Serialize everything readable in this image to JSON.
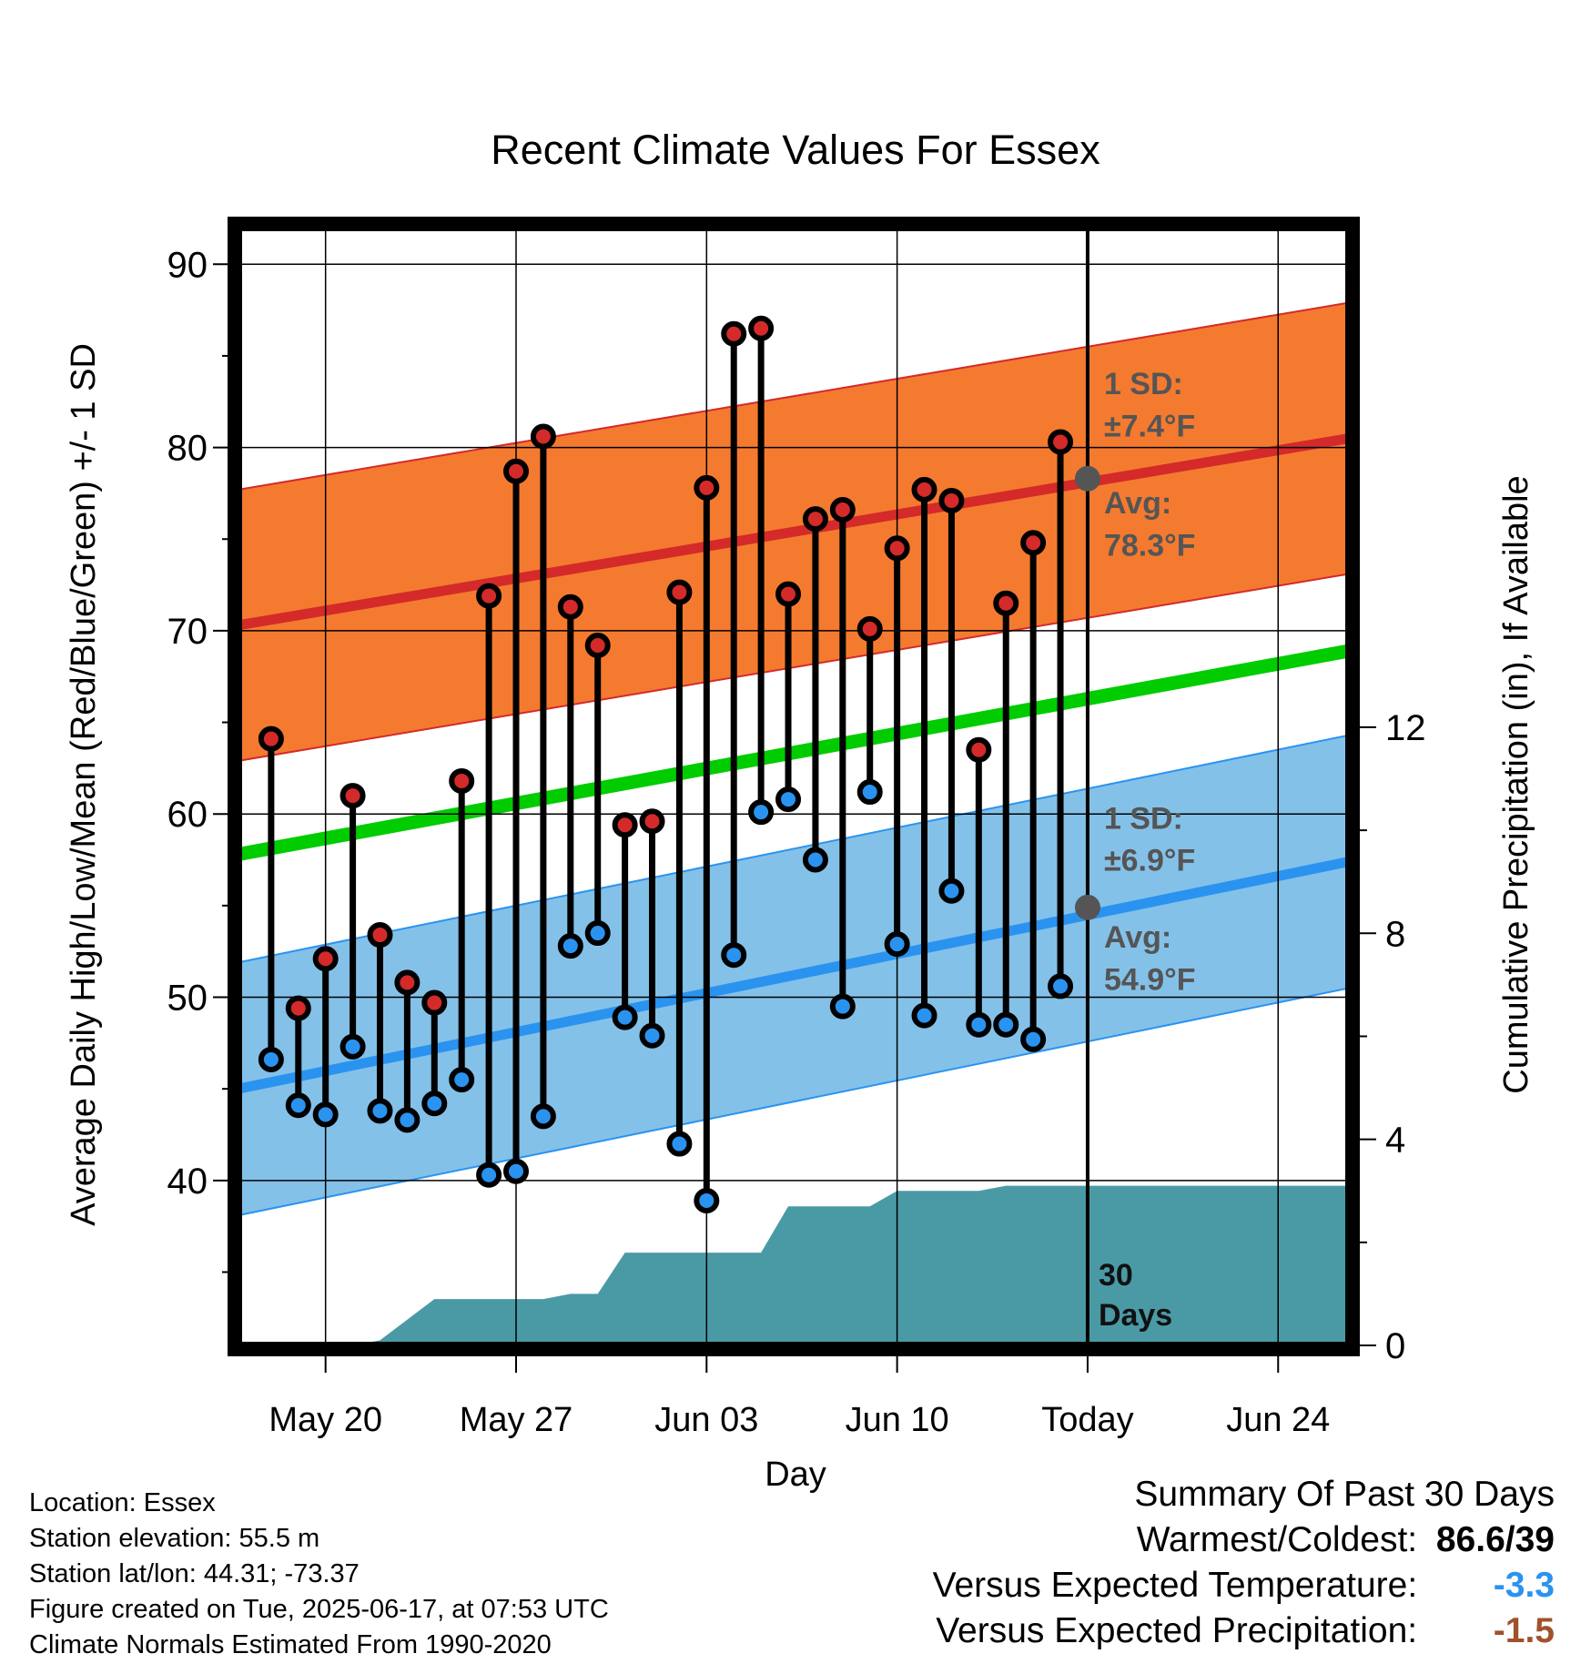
{
  "chart_data": {
    "type": "line",
    "title": "Recent Climate Values For Essex",
    "xlabel": "Day",
    "ylabel_left": "Average Daily High/Low/Mean (Red/Blue/Green) +/- 1 SD",
    "ylabel_right": "Cumulative Precipitation (in), If Available",
    "y_left_range": [
      31,
      92
    ],
    "y_left_ticks": [
      "40",
      "50",
      "60",
      "70",
      "80",
      "90"
    ],
    "y_right_range": [
      0,
      21.7
    ],
    "y_right_ticks": [
      "0",
      "4",
      "8",
      "12"
    ],
    "x_tick_labels": [
      "May 20",
      "May 27",
      "Jun 03",
      "Jun 10",
      "Today",
      "Jun 24"
    ],
    "x_tick_days": [
      20,
      27,
      34,
      41,
      48,
      55
    ],
    "x_range": [
      16.8,
      57.6
    ],
    "today_day": 48,
    "days_label": "30 Days",
    "normals": {
      "high_mean_start": 70.3,
      "high_mean_end": 80.5,
      "high_sd": 7.4,
      "low_mean_start": 45.0,
      "low_mean_end": 57.4,
      "low_sd": 6.9,
      "mean_start": 57.8,
      "mean_end": 68.9
    },
    "annotations": {
      "high_sd_label": "1 SD:",
      "high_sd_value": "±7.4°F",
      "high_avg_label": "Avg:",
      "high_avg_value": "78.3°F",
      "high_avg_point": 78.3,
      "low_sd_label": "1 SD:",
      "low_sd_value": "±6.9°F",
      "low_avg_label": "Avg:",
      "low_avg_value": "54.9°F",
      "low_avg_point": 54.9
    },
    "series": [
      {
        "name": "High",
        "color": "#d42a2a",
        "x": [
          18,
          19,
          20,
          21,
          22,
          23,
          24,
          25,
          26,
          27,
          28,
          29,
          30,
          31,
          32,
          33,
          34,
          35,
          36,
          37,
          38,
          39,
          40,
          41,
          42,
          43,
          44,
          45,
          46,
          47
        ],
        "values": [
          64.1,
          49.4,
          52.1,
          61.0,
          53.4,
          50.8,
          49.7,
          61.8,
          71.9,
          78.7,
          80.6,
          71.3,
          69.2,
          59.4,
          59.6,
          72.1,
          77.8,
          86.2,
          86.5,
          72.0,
          76.1,
          76.6,
          70.1,
          74.5,
          77.7,
          77.1,
          63.5,
          71.5,
          74.8,
          80.3
        ]
      },
      {
        "name": "Low",
        "color": "#2a93f0",
        "x": [
          18,
          19,
          20,
          21,
          22,
          23,
          24,
          25,
          26,
          27,
          28,
          29,
          30,
          31,
          32,
          33,
          34,
          35,
          36,
          37,
          38,
          39,
          40,
          41,
          42,
          43,
          44,
          45,
          46,
          47
        ],
        "values": [
          46.6,
          44.1,
          43.6,
          47.3,
          43.8,
          43.3,
          44.2,
          45.5,
          40.3,
          40.5,
          43.5,
          52.8,
          53.5,
          48.9,
          47.9,
          42.0,
          38.9,
          52.3,
          60.1,
          60.8,
          57.5,
          49.5,
          61.2,
          52.9,
          49.0,
          55.8,
          48.5,
          48.5,
          47.7,
          50.6
        ]
      },
      {
        "name": "Precipitation",
        "color": "#4a9aa6",
        "x": [
          17,
          18,
          19,
          20,
          21,
          22,
          23,
          24,
          25,
          26,
          27,
          28,
          29,
          30,
          31,
          32,
          33,
          34,
          35,
          36,
          37,
          38,
          39,
          40,
          41,
          42,
          43,
          44,
          45,
          46,
          47,
          48,
          49,
          50,
          51,
          52,
          53,
          54,
          55,
          56,
          57
        ],
        "values": [
          0,
          0,
          0,
          0,
          0,
          0.1,
          0.5,
          0.9,
          0.9,
          0.9,
          0.9,
          0.9,
          1.0,
          1.0,
          1.8,
          1.8,
          1.8,
          1.8,
          1.8,
          1.8,
          2.7,
          2.7,
          2.7,
          2.7,
          3.0,
          3.0,
          3.0,
          3.0,
          3.1,
          3.1,
          3.1,
          3.1,
          3.1,
          3.1,
          3.1,
          3.1,
          3.1,
          3.1,
          3.1,
          3.1,
          3.1
        ]
      }
    ]
  },
  "footer": {
    "location": "Location: Essex",
    "elevation": "Station elevation: 55.5 m",
    "latlon": "Station lat/lon: 44.31; -73.37",
    "created": "Figure created on Tue, 2025-06-17, at 07:53 UTC",
    "normals": "Climate Normals Estimated From 1990-2020"
  },
  "summary": {
    "title": "Summary Of Past 30 Days",
    "warmest_label": "Warmest/Coldest:",
    "warmest_value_high": "86.6",
    "warmest_value_sep": "/",
    "warmest_value_low": "39",
    "temp_label": "Versus Expected Temperature:",
    "temp_value": "-3.3",
    "temp_color": "#2a93f0",
    "precip_label": "Versus Expected Precipitation:",
    "precip_value": "-1.5",
    "precip_color": "#a0522d"
  },
  "colors": {
    "high_band": "#f47a30",
    "high_line": "#d42a2a",
    "low_band": "#84c1e8",
    "low_line": "#2a93f0",
    "mean_line": "#00cc00",
    "precip_fill": "#4a9aa6",
    "annotation": "#555555"
  }
}
